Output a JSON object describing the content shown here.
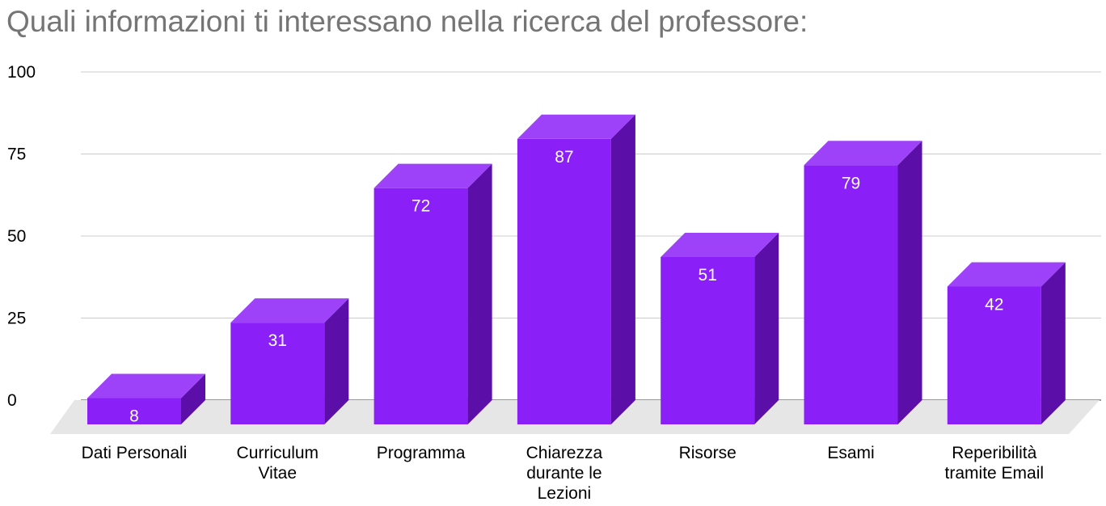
{
  "colors": {
    "bar_front": "#8b1ff7",
    "bar_top": "#9e42fa",
    "bar_side": "#5b0ea8",
    "floor": "#e6e6e6",
    "grid": "#cccccc",
    "title": "#757575"
  },
  "chart_data": {
    "type": "bar",
    "title": "Quali informazioni ti interessano nella ricerca del professore:",
    "style": "3d",
    "categories": [
      "Dati Personali",
      "Curriculum Vitae",
      "Programma",
      "Chiarezza durante le Lezioni",
      "Risorse",
      "Esami",
      "Reperibilità tramite Email"
    ],
    "category_label_lines": [
      [
        "Dati Personali"
      ],
      [
        "Curriculum",
        "Vitae"
      ],
      [
        "Programma"
      ],
      [
        "Chiarezza",
        "durante le",
        "Lezioni"
      ],
      [
        "Risorse"
      ],
      [
        "Esami"
      ],
      [
        "Reperibilità",
        "tramite Email"
      ]
    ],
    "values": [
      8,
      31,
      72,
      87,
      51,
      79,
      42
    ],
    "data_labels": true,
    "yticks": [
      0,
      25,
      50,
      75,
      100
    ],
    "ylim": [
      0,
      100
    ],
    "grid": true,
    "legend": "none",
    "xlabel": "",
    "ylabel": ""
  }
}
